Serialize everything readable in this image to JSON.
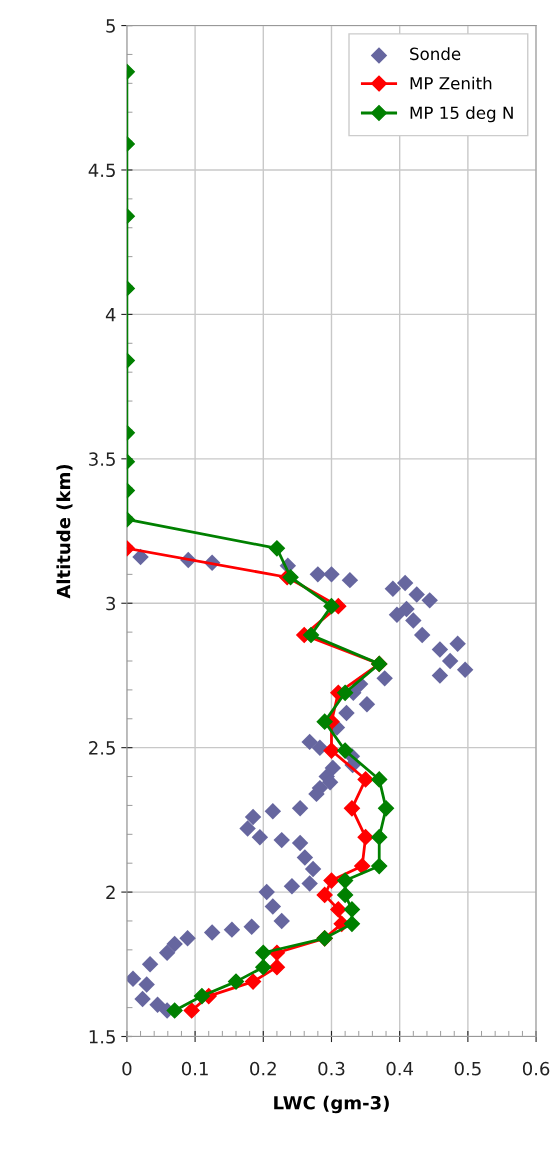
{
  "chart_data": {
    "type": "line",
    "xlabel": "LWC (gm-3)",
    "ylabel": "Altitude (km)",
    "xlim": [
      0,
      0.6
    ],
    "xticks": [
      0,
      0.1,
      0.2,
      0.3,
      0.4,
      0.5,
      0.6
    ],
    "ylim": [
      1.5,
      5
    ],
    "yticks": [
      1.5,
      2,
      2.5,
      3,
      3.5,
      4,
      4.5,
      5
    ],
    "grid": true,
    "legend": "top right",
    "marker": "diamond",
    "series": [
      {
        "name": "Sonde",
        "type": "scatter",
        "color": "#66669f",
        "x": [
          0.02,
          0.09,
          0.125,
          0.236,
          0.28,
          0.3,
          0.327,
          0.39,
          0.408,
          0.425,
          0.444,
          0.396,
          0.41,
          0.42,
          0.433,
          0.459,
          0.485,
          0.474,
          0.496,
          0.459,
          0.378,
          0.342,
          0.332,
          0.352,
          0.322,
          0.308,
          0.268,
          0.283,
          0.33,
          0.302,
          0.293,
          0.283,
          0.331,
          0.298,
          0.278,
          0.254,
          0.214,
          0.185,
          0.177,
          0.195,
          0.227,
          0.254,
          0.261,
          0.273,
          0.268,
          0.242,
          0.205,
          0.214,
          0.227,
          0.183,
          0.154,
          0.125,
          0.089,
          0.07,
          0.059,
          0.034,
          0.009,
          0.029,
          0.023,
          0.045,
          0.059
        ],
        "values": [
          3.16,
          3.15,
          3.14,
          3.13,
          3.1,
          3.1,
          3.08,
          3.05,
          3.07,
          3.03,
          3.01,
          2.96,
          2.98,
          2.94,
          2.89,
          2.84,
          2.86,
          2.8,
          2.77,
          2.75,
          2.74,
          2.72,
          2.69,
          2.65,
          2.62,
          2.57,
          2.52,
          2.5,
          2.47,
          2.43,
          2.4,
          2.36,
          2.44,
          2.38,
          2.34,
          2.29,
          2.28,
          2.26,
          2.22,
          2.19,
          2.18,
          2.17,
          2.12,
          2.08,
          2.03,
          2.02,
          2.0,
          1.95,
          1.9,
          1.88,
          1.87,
          1.86,
          1.84,
          1.82,
          1.79,
          1.75,
          1.7,
          1.68,
          1.63,
          1.61,
          1.59
        ]
      },
      {
        "name": "MP Zenith",
        "color": "#ff0000",
        "x": [
          0,
          0.235,
          0.31,
          0.26,
          0.37,
          0.31,
          0.3,
          0.3,
          0.35,
          0.33,
          0.35,
          0.345,
          0.3,
          0.29,
          0.31,
          0.315,
          0.29,
          0.22,
          0.22,
          0.185,
          0.12,
          0.095
        ],
        "values": [
          3.19,
          3.09,
          2.99,
          2.89,
          2.79,
          2.69,
          2.59,
          2.49,
          2.39,
          2.29,
          2.19,
          2.09,
          2.04,
          1.99,
          1.94,
          1.89,
          1.84,
          1.79,
          1.74,
          1.69,
          1.64,
          1.59
        ]
      },
      {
        "name": "MP 15 deg N",
        "color": "#008000",
        "x": [
          0,
          0,
          0,
          0,
          0,
          0,
          0,
          0,
          0,
          0.22,
          0.24,
          0.3,
          0.27,
          0.37,
          0.32,
          0.29,
          0.32,
          0.37,
          0.38,
          0.37,
          0.37,
          0.32,
          0.32,
          0.33,
          0.33,
          0.29,
          0.2,
          0.2,
          0.16,
          0.11,
          0.07
        ],
        "values": [
          4.84,
          4.59,
          4.34,
          4.09,
          3.84,
          3.59,
          3.49,
          3.39,
          3.29,
          3.19,
          3.09,
          2.99,
          2.89,
          2.79,
          2.69,
          2.59,
          2.49,
          2.39,
          2.29,
          2.19,
          2.09,
          2.04,
          1.99,
          1.94,
          1.89,
          1.84,
          1.79,
          1.74,
          1.69,
          1.64,
          1.59
        ]
      }
    ]
  }
}
